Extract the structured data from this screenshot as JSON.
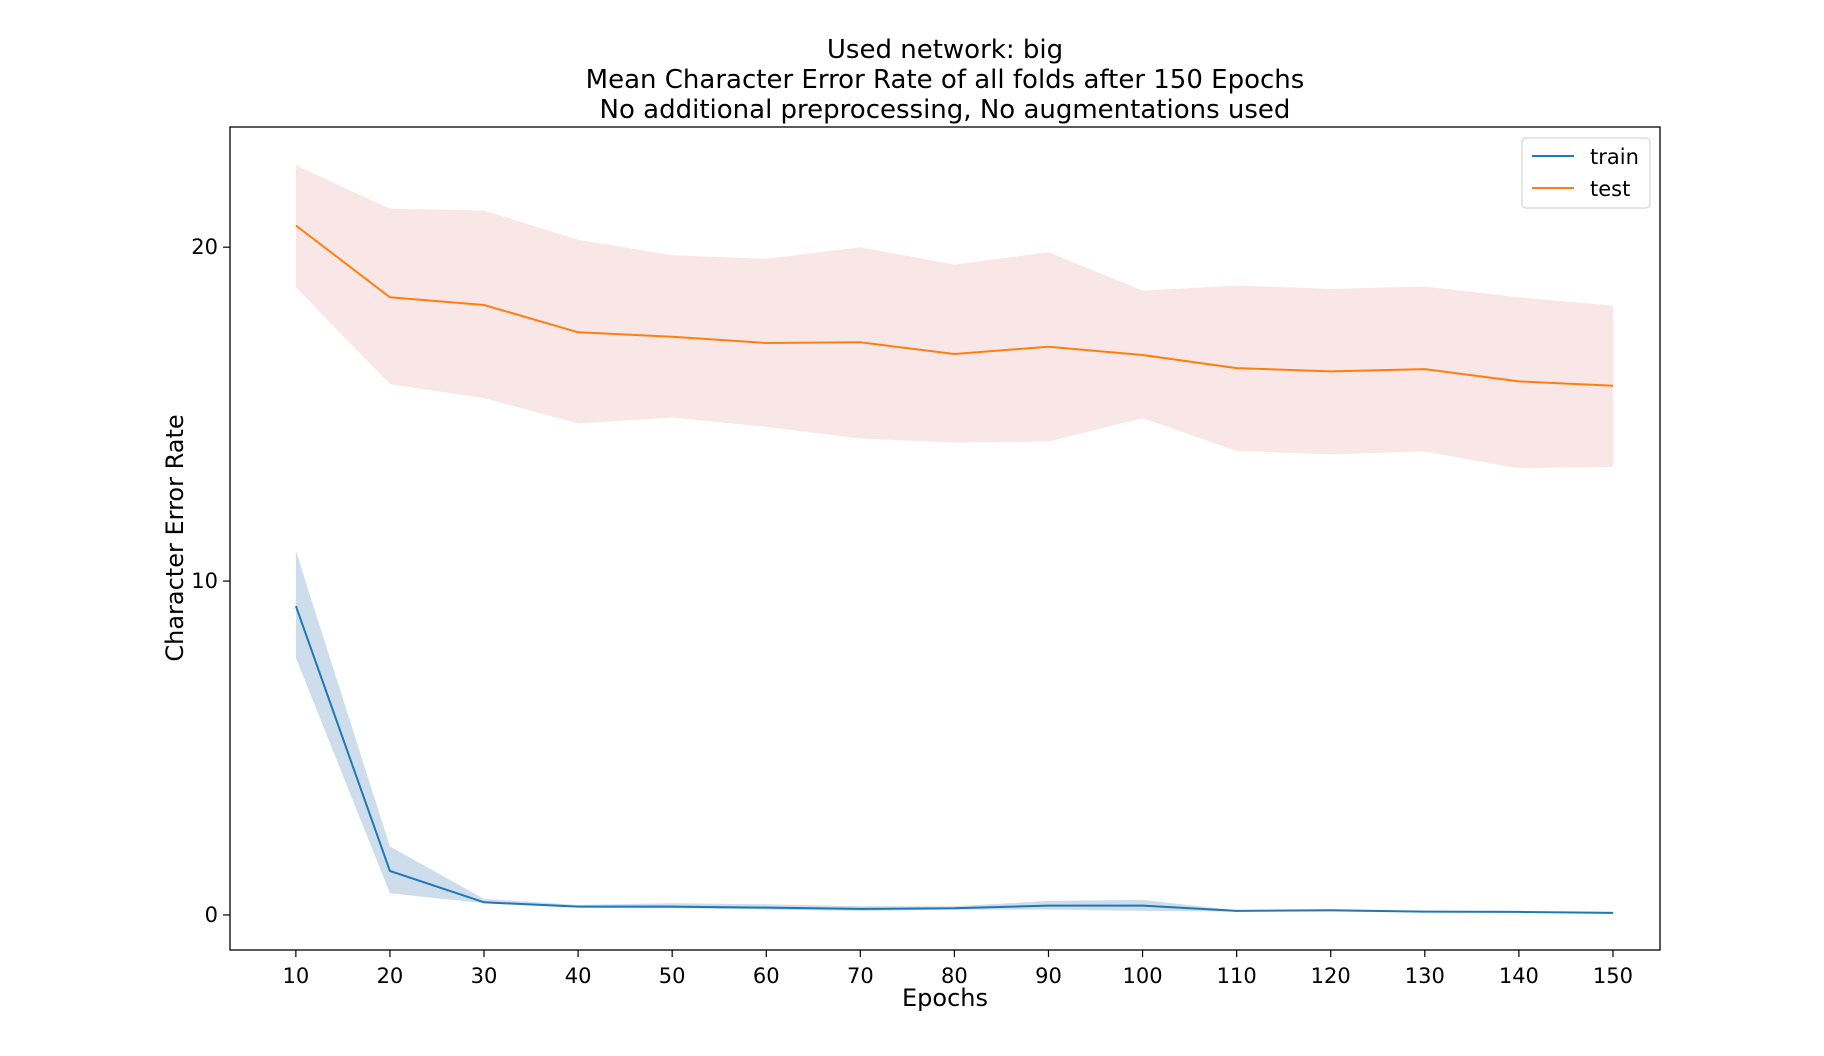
{
  "chart_data": {
    "type": "line",
    "title_lines": [
      "Used network: big",
      "Mean Character Error Rate of all folds after 150 Epochs",
      "No additional preprocessing, No augmentations used"
    ],
    "xlabel": "Epochs",
    "ylabel": "Character Error Rate",
    "x": [
      10,
      20,
      30,
      40,
      50,
      60,
      70,
      80,
      90,
      100,
      110,
      120,
      130,
      140,
      150
    ],
    "xticks": [
      "10",
      "20",
      "30",
      "40",
      "50",
      "60",
      "70",
      "80",
      "90",
      "100",
      "110",
      "120",
      "130",
      "140",
      "150"
    ],
    "yticks": [
      0,
      10,
      20
    ],
    "xlim": [
      3,
      155
    ],
    "ylim": [
      -1.05,
      23.6
    ],
    "grid": false,
    "legend_position": "top-right",
    "series": [
      {
        "name": "train",
        "color": "#1f77b4",
        "band_color": "#aec7e0",
        "values": [
          9.25,
          1.32,
          0.38,
          0.25,
          0.25,
          0.22,
          0.18,
          0.2,
          0.28,
          0.28,
          0.12,
          0.14,
          0.1,
          0.09,
          0.06
        ],
        "lower": [
          7.7,
          0.65,
          0.35,
          0.22,
          0.2,
          0.16,
          0.12,
          0.16,
          0.16,
          0.12,
          0.1,
          0.1,
          0.08,
          0.07,
          0.04
        ],
        "upper": [
          10.9,
          2.05,
          0.48,
          0.3,
          0.35,
          0.32,
          0.26,
          0.26,
          0.42,
          0.45,
          0.14,
          0.16,
          0.12,
          0.11,
          0.08
        ]
      },
      {
        "name": "test",
        "color": "#ff7f0e",
        "band_color": "#f5d5d5",
        "values": [
          20.65,
          18.5,
          18.27,
          17.45,
          17.32,
          17.13,
          17.15,
          16.8,
          17.02,
          16.77,
          16.38,
          16.28,
          16.35,
          15.98,
          15.85
        ],
        "lower": [
          18.8,
          15.9,
          15.48,
          14.72,
          14.9,
          14.62,
          14.27,
          14.15,
          14.18,
          14.88,
          13.9,
          13.8,
          13.88,
          13.38,
          13.42
        ],
        "upper": [
          22.45,
          21.15,
          21.1,
          20.22,
          19.76,
          19.65,
          20.0,
          19.48,
          19.85,
          18.7,
          18.85,
          18.75,
          18.82,
          18.5,
          18.25
        ]
      }
    ]
  }
}
